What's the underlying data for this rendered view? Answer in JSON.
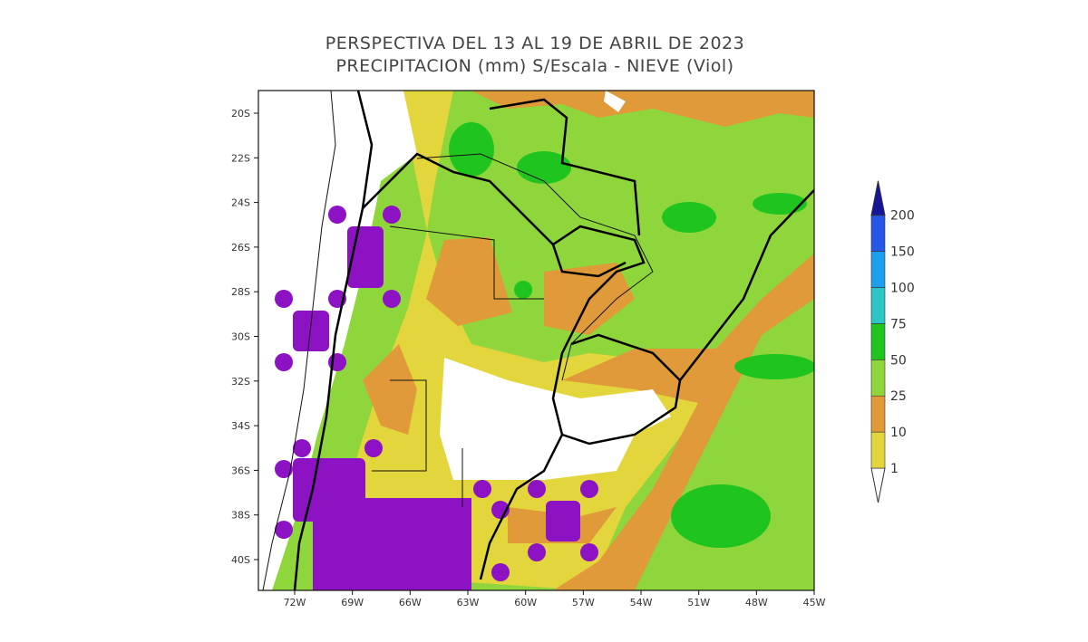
{
  "title": [
    "PERSPECTIVA DEL 13 AL 19 DE ABRIL DE 2023",
    "PRECIPITACION (mm) S/Escala - NIEVE (Viol)"
  ],
  "map": {
    "lat_labels": [
      "20S",
      "22S",
      "24S",
      "26S",
      "28S",
      "30S",
      "32S",
      "34S",
      "36S",
      "38S",
      "40S"
    ],
    "lon_labels": [
      "72W",
      "69W",
      "66W",
      "63W",
      "60W",
      "57W",
      "54W",
      "51W",
      "48W",
      "45W"
    ]
  },
  "legend": {
    "labels": [
      1,
      10,
      25,
      50,
      75,
      100,
      150,
      200
    ],
    "colors": [
      "#ffffff",
      "#e2d63c",
      "#e09a3a",
      "#8fd63c",
      "#1fc41f",
      "#2cc6c6",
      "#1d9ff0",
      "#2657e6",
      "#16169a"
    ]
  }
}
